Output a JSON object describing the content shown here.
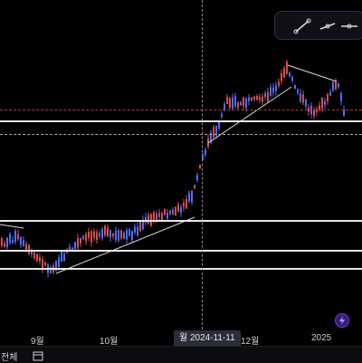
{
  "toolbar": {
    "tools": [
      "trend-line-tool",
      "ray-tool",
      "horizontal-line-tool"
    ]
  },
  "xaxis": {
    "labels": [
      "9월",
      "10월",
      "12월",
      "2025"
    ],
    "crosshair_label": "월 2024-11-11"
  },
  "footer": {
    "text": "전체"
  },
  "colors": {
    "up_candle": "#dd4b4b",
    "down_candle": "#4f6ef7",
    "lines": "#e8e8e8",
    "background": "#000000"
  }
}
